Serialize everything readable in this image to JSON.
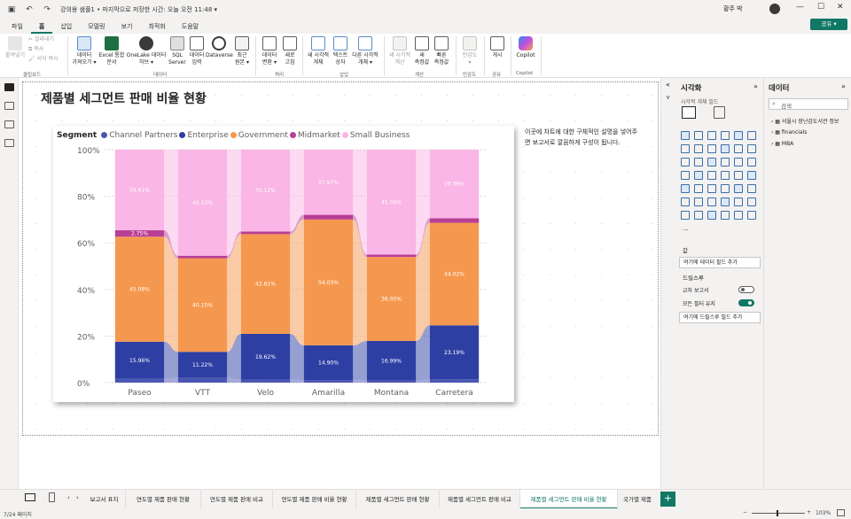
{
  "titlebar": {
    "doc_title": "강의용 샘플1 • 마지막으로 저장한 시간: 오늘 오전 11:48 ▾",
    "user_name": "황주 박",
    "minimize": "—",
    "maximize": "☐",
    "close": "✕"
  },
  "menu": {
    "tabs": [
      "파일",
      "홈",
      "삽입",
      "모델링",
      "보기",
      "최적화",
      "도움말"
    ],
    "share_label": "공유 ▾"
  },
  "ribbon": {
    "clipboard": {
      "paste": "붙여넣기",
      "cut": "잘라내기",
      "copy": "복사",
      "format_painter": "서식 복사",
      "group": "클립보드"
    },
    "data": {
      "get_data": "데이터\n가져오기 ▾",
      "excel": "Excel 통합\n문서",
      "onelake": "OneLake 데이터\n허브 ▾",
      "sql": "SQL\nServer",
      "enter_data": "데이터\n입력",
      "dataverse": "Dataverse",
      "recent": "최근\n원본 ▾",
      "group": "데이터"
    },
    "queries": {
      "transform": "데이터\n변환 ▾",
      "refresh": "새로\n고침",
      "group": "쿼리"
    },
    "insert": {
      "new_visual": "새 시각적\n개체",
      "text_box": "텍스트\n상자",
      "more_visuals": "다른 시각적\n개체 ▾",
      "group": "삽입"
    },
    "calculations": {
      "new_calc": "새 시각적\n계산",
      "new_measure": "새\n측정값",
      "quick_measure": "빠른\n측정값",
      "group": "계산"
    },
    "sensitivity": {
      "label": "민감도\n▾",
      "group": "민감도"
    },
    "share": {
      "publish": "게시",
      "group": "공유"
    },
    "copilot": {
      "label": "Copilot",
      "group": "Copilot"
    }
  },
  "report": {
    "title": "제품별 세그먼트 판매 비율 현황",
    "description": "이곳에 차트에 대한 구체적인 설명을 넣어주면 보고서로 깔끔하게 구성이 됩니다."
  },
  "chart_data": {
    "type": "bar",
    "stacked": "100%",
    "legend_title": "Segment",
    "legend_position": "top-left",
    "categories": [
      "Paseo",
      "VTT",
      "Velo",
      "Amarilla",
      "Montana",
      "Carretera"
    ],
    "yticks": [
      "0%",
      "20%",
      "40%",
      "60%",
      "80%",
      "100%"
    ],
    "ylim": [
      0,
      100
    ],
    "grid": true,
    "series": [
      {
        "name": "Channel Partners",
        "color": "#4a56b3",
        "values": [
          1.6,
          2.0,
          1.3,
          1.1,
          0.9,
          1.4
        ],
        "labels": [
          "",
          "",
          "",
          "",
          "",
          ""
        ]
      },
      {
        "name": "Enterprise",
        "color": "#2e3fa3",
        "values": [
          15.96,
          11.22,
          19.62,
          14.9,
          16.99,
          23.19
        ],
        "labels": [
          "15.96%",
          "11.22%",
          "19.62%",
          "14.90%",
          "16.99%",
          "23.19%"
        ]
      },
      {
        "name": "Government",
        "color": "#f5984f",
        "values": [
          45.08,
          40.15,
          42.81,
          54.03,
          36.05,
          44.02
        ],
        "labels": [
          "45.08%",
          "40.15%",
          "42.81%",
          "54.03%",
          "36.05%",
          "44.02%"
        ]
      },
      {
        "name": "Midmarket",
        "color": "#b83f95",
        "values": [
          2.75,
          1.1,
          1.15,
          2.0,
          1.0,
          2.0
        ],
        "labels": [
          "2.75%",
          "",
          "",
          "",
          "",
          ""
        ]
      },
      {
        "name": "Small Business",
        "color": "#f9b6e6",
        "values": [
          34.61,
          45.53,
          35.12,
          27.97,
          45.06,
          29.39
        ],
        "labels": [
          "34.61%",
          "45.53%",
          "35.12%",
          "27.97%",
          "45.06%",
          "29.39%"
        ]
      }
    ]
  },
  "viz_pane": {
    "title": "시각화",
    "build_label": "시각적 개체 빌드",
    "values_label": "값",
    "values_placeholder": "여기에 데이터 필드 추가",
    "drillthrough_label": "드릴스루",
    "cross_report": "교차 보고서",
    "keep_filters": "모든 필터 유지",
    "drill_placeholder": "여기에 드릴스루 필드 추가",
    "cross_report_state": "off",
    "keep_filters_state": "on",
    "more": "···"
  },
  "data_pane": {
    "title": "데이터",
    "search_placeholder": "검색",
    "tables": [
      "서울시 장난감도서관 정보",
      "financials",
      "MBA"
    ]
  },
  "pages": {
    "tabs": [
      "보고서 표지",
      "연도별 제품 판매 현황",
      "연도별 제품 판매 비교",
      "연도별 제품 판매 비율 현황",
      "제품별 세그먼트 판매 현황",
      "제품별 세그먼트 판매 비교",
      "제품별 세그먼트 판매 비율 현황",
      "국가별 제품"
    ],
    "active_index": 6,
    "add": "+"
  },
  "status": {
    "page": "7/24 페이지",
    "zoom": "103%"
  }
}
